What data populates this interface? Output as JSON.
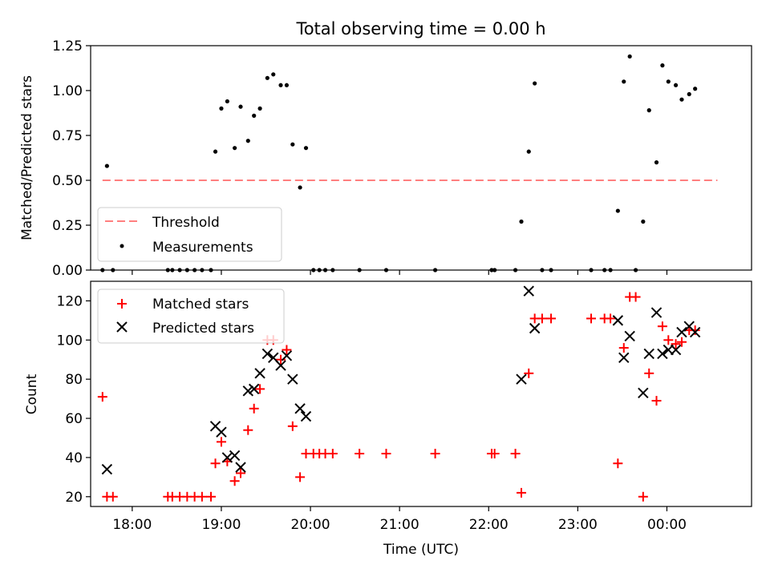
{
  "figure": {
    "title": "Total observing time = 0.00 h"
  },
  "chart_data": [
    {
      "type": "scatter",
      "panel": "top",
      "ylabel": "Matched/Predicted stars",
      "xlabel": "",
      "ylim": [
        0,
        1.25
      ],
      "xlim": [
        "17:32",
        "00:57"
      ],
      "yticks": [
        0,
        0.25,
        0.5,
        0.75,
        1.0,
        1.25
      ],
      "ytick_labels": [
        "0.00",
        "0.25",
        "0.50",
        "0.75",
        "1.00",
        "1.25"
      ],
      "legend": {
        "placement": "lower-left",
        "entries": [
          "Threshold",
          "Measurements"
        ]
      },
      "threshold": {
        "name": "Threshold",
        "value": 0.5,
        "x_start": "17:40",
        "x_end": "00:34",
        "color": "#ff7f7f",
        "style": "dashed"
      },
      "series": [
        {
          "name": "Measurements",
          "color": "#000000",
          "marker": "dot",
          "points": [
            [
              "17:40",
              0.0
            ],
            [
              "17:43",
              0.58
            ],
            [
              "17:47",
              0.0
            ],
            [
              "18:24",
              0.0
            ],
            [
              "18:27",
              0.0
            ],
            [
              "18:32",
              0.0
            ],
            [
              "18:37",
              0.0
            ],
            [
              "18:42",
              0.0
            ],
            [
              "18:47",
              0.0
            ],
            [
              "18:53",
              0.0
            ],
            [
              "18:56",
              0.66
            ],
            [
              "19:00",
              0.9
            ],
            [
              "19:04",
              0.94
            ],
            [
              "19:09",
              0.68
            ],
            [
              "19:13",
              0.91
            ],
            [
              "19:18",
              0.72
            ],
            [
              "19:22",
              0.86
            ],
            [
              "19:26",
              0.9
            ],
            [
              "19:31",
              1.07
            ],
            [
              "19:35",
              1.09
            ],
            [
              "19:40",
              1.03
            ],
            [
              "19:44",
              1.03
            ],
            [
              "19:48",
              0.7
            ],
            [
              "19:53",
              0.46
            ],
            [
              "19:57",
              0.68
            ],
            [
              "20:02",
              0.0
            ],
            [
              "20:06",
              0.0
            ],
            [
              "20:10",
              0.0
            ],
            [
              "20:15",
              0.0
            ],
            [
              "20:33",
              0.0
            ],
            [
              "20:51",
              0.0
            ],
            [
              "21:24",
              0.0
            ],
            [
              "22:02",
              0.0
            ],
            [
              "22:04",
              0.0
            ],
            [
              "22:18",
              0.0
            ],
            [
              "22:22",
              0.27
            ],
            [
              "22:27",
              0.66
            ],
            [
              "22:31",
              1.04
            ],
            [
              "22:36",
              0.0
            ],
            [
              "22:42",
              0.0
            ],
            [
              "23:09",
              0.0
            ],
            [
              "23:18",
              0.0
            ],
            [
              "23:22",
              0.0
            ],
            [
              "23:27",
              0.33
            ],
            [
              "23:31",
              1.05
            ],
            [
              "23:35",
              1.19
            ],
            [
              "23:39",
              0.0
            ],
            [
              "23:44",
              0.27
            ],
            [
              "23:48",
              0.89
            ],
            [
              "23:53",
              0.6
            ],
            [
              "23:57",
              1.14
            ],
            [
              "00:01",
              1.05
            ],
            [
              "00:06",
              1.03
            ],
            [
              "00:10",
              0.95
            ],
            [
              "00:15",
              0.98
            ],
            [
              "00:19",
              1.01
            ]
          ]
        }
      ]
    },
    {
      "type": "scatter",
      "panel": "bottom",
      "ylabel": "Count",
      "xlabel": "Time (UTC)",
      "ylim": [
        15,
        130
      ],
      "xlim": [
        "17:32",
        "00:57"
      ],
      "yticks": [
        20,
        40,
        60,
        80,
        100,
        120
      ],
      "ytick_labels": [
        "20",
        "40",
        "60",
        "80",
        "100",
        "120"
      ],
      "xticks": [
        "18:00",
        "19:00",
        "20:00",
        "21:00",
        "22:00",
        "23:00",
        "00:00"
      ],
      "xtick_labels": [
        "18:00",
        "19:00",
        "20:00",
        "21:00",
        "22:00",
        "23:00",
        "00:00"
      ],
      "legend": {
        "placement": "upper-left",
        "entries": [
          "Matched stars",
          "Predicted stars"
        ]
      },
      "series": [
        {
          "name": "Matched stars",
          "color": "#ff0000",
          "marker": "plus",
          "points": [
            [
              "17:40",
              71
            ],
            [
              "17:43",
              20
            ],
            [
              "17:47",
              20
            ],
            [
              "18:24",
              20
            ],
            [
              "18:27",
              20
            ],
            [
              "18:32",
              20
            ],
            [
              "18:37",
              20
            ],
            [
              "18:42",
              20
            ],
            [
              "18:47",
              20
            ],
            [
              "18:53",
              20
            ],
            [
              "18:56",
              37
            ],
            [
              "19:00",
              48
            ],
            [
              "19:04",
              38
            ],
            [
              "19:09",
              28
            ],
            [
              "19:13",
              32
            ],
            [
              "19:18",
              54
            ],
            [
              "19:22",
              65
            ],
            [
              "19:26",
              75
            ],
            [
              "19:31",
              100
            ],
            [
              "19:35",
              100
            ],
            [
              "19:40",
              90
            ],
            [
              "19:44",
              95
            ],
            [
              "19:48",
              56
            ],
            [
              "19:53",
              30
            ],
            [
              "19:57",
              42
            ],
            [
              "20:02",
              42
            ],
            [
              "20:06",
              42
            ],
            [
              "20:10",
              42
            ],
            [
              "20:15",
              42
            ],
            [
              "20:33",
              42
            ],
            [
              "20:51",
              42
            ],
            [
              "21:24",
              42
            ],
            [
              "22:02",
              42
            ],
            [
              "22:04",
              42
            ],
            [
              "22:18",
              42
            ],
            [
              "22:22",
              22
            ],
            [
              "22:27",
              83
            ],
            [
              "22:31",
              111
            ],
            [
              "22:36",
              111
            ],
            [
              "22:42",
              111
            ],
            [
              "23:09",
              111
            ],
            [
              "23:18",
              111
            ],
            [
              "23:22",
              111
            ],
            [
              "23:27",
              37
            ],
            [
              "23:31",
              96
            ],
            [
              "23:35",
              122
            ],
            [
              "23:39",
              122
            ],
            [
              "23:44",
              20
            ],
            [
              "23:48",
              83
            ],
            [
              "23:53",
              69
            ],
            [
              "23:57",
              107
            ],
            [
              "00:01",
              100
            ],
            [
              "00:06",
              98
            ],
            [
              "00:10",
              99
            ],
            [
              "00:15",
              105
            ],
            [
              "00:19",
              105
            ]
          ]
        },
        {
          "name": "Predicted stars",
          "color": "#000000",
          "marker": "x",
          "points": [
            [
              "17:43",
              34
            ],
            [
              "18:56",
              56
            ],
            [
              "19:00",
              53
            ],
            [
              "19:04",
              40
            ],
            [
              "19:09",
              41
            ],
            [
              "19:13",
              35
            ],
            [
              "19:18",
              74
            ],
            [
              "19:22",
              75
            ],
            [
              "19:26",
              83
            ],
            [
              "19:31",
              93
            ],
            [
              "19:35",
              91
            ],
            [
              "19:40",
              87
            ],
            [
              "19:44",
              92
            ],
            [
              "19:48",
              80
            ],
            [
              "19:53",
              65
            ],
            [
              "19:57",
              61
            ],
            [
              "22:22",
              80
            ],
            [
              "22:27",
              125
            ],
            [
              "22:31",
              106
            ],
            [
              "23:27",
              110
            ],
            [
              "23:31",
              91
            ],
            [
              "23:35",
              102
            ],
            [
              "23:44",
              73
            ],
            [
              "23:48",
              93
            ],
            [
              "23:53",
              114
            ],
            [
              "23:57",
              93
            ],
            [
              "00:01",
              95
            ],
            [
              "00:06",
              95
            ],
            [
              "00:10",
              104
            ],
            [
              "00:15",
              107
            ],
            [
              "00:19",
              104
            ]
          ]
        }
      ]
    }
  ]
}
